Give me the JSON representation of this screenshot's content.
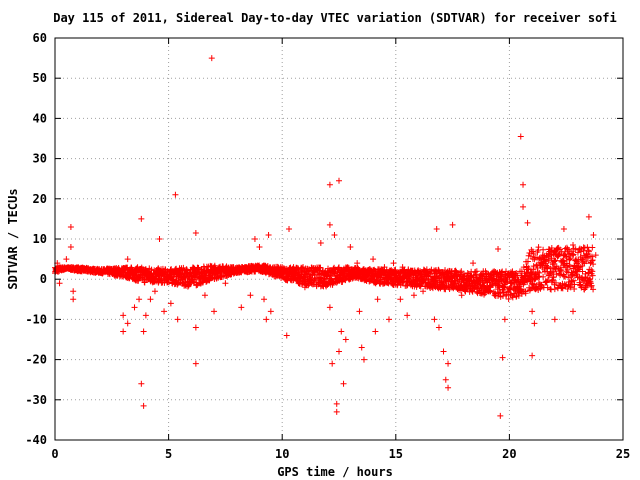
{
  "colors": {
    "series": "#ff0000",
    "frame": "#000000",
    "grid": "#a0a0a0"
  },
  "chart_data": {
    "type": "scatter",
    "title": "Day 115 of 2011, Sidereal Day-to-day VTEC variation (SDTVAR) for receiver sofi",
    "xlabel": "GPS time / hours",
    "ylabel": "SDTVAR / TECUs",
    "xlim": [
      0,
      25
    ],
    "ylim": [
      -40,
      60
    ],
    "xticks": [
      0,
      5,
      10,
      15,
      20,
      25
    ],
    "yticks": [
      -40,
      -30,
      -20,
      -10,
      0,
      10,
      20,
      30,
      40,
      50,
      60
    ],
    "xtick_labels": [
      "0",
      "5",
      "10",
      "15",
      "20",
      "25"
    ],
    "ytick_labels": [
      "-40",
      "-30",
      "-20",
      "-10",
      "0",
      "10",
      "20",
      "30",
      "40",
      "50",
      "60"
    ],
    "grid": true,
    "marker": "plus",
    "series": [
      {
        "band": [
          [
            0.0,
            1.5,
            3
          ],
          [
            0.5,
            2.5,
            3
          ],
          [
            1.0,
            2,
            3
          ],
          [
            2.0,
            1.5,
            2.5
          ],
          [
            3.0,
            0.5,
            3
          ],
          [
            4.0,
            -1,
            3
          ],
          [
            5.0,
            -1,
            2.5
          ],
          [
            6.0,
            -2,
            3
          ],
          [
            7.0,
            0,
            3.5
          ],
          [
            8.0,
            1.5,
            3
          ],
          [
            9.0,
            2,
            3.5
          ],
          [
            10.0,
            0,
            3
          ],
          [
            11.0,
            -1.5,
            3
          ],
          [
            12.0,
            -2,
            3
          ],
          [
            13.0,
            0,
            3
          ],
          [
            14.0,
            -1,
            2.5
          ],
          [
            15.0,
            -1.5,
            2.5
          ],
          [
            16.0,
            -2,
            2.5
          ],
          [
            17.0,
            -2.5,
            2.5
          ],
          [
            18.0,
            -3,
            2
          ],
          [
            19.0,
            -4,
            2
          ],
          [
            20.0,
            -5,
            2
          ],
          [
            20.5,
            -4,
            2
          ],
          [
            21.0,
            -3,
            8
          ],
          [
            22.0,
            -2.5,
            8
          ],
          [
            23.0,
            -2.5,
            8
          ],
          [
            23.7,
            -3,
            8
          ]
        ],
        "points": [
          [
            0.1,
            4
          ],
          [
            0.2,
            -1
          ],
          [
            0.5,
            5
          ],
          [
            0.7,
            13
          ],
          [
            0.7,
            8
          ],
          [
            0.8,
            -3
          ],
          [
            0.8,
            -5
          ],
          [
            3.0,
            -9
          ],
          [
            3.0,
            -13
          ],
          [
            3.2,
            -11
          ],
          [
            3.2,
            5
          ],
          [
            3.5,
            -7
          ],
          [
            3.7,
            -5
          ],
          [
            3.8,
            15
          ],
          [
            3.8,
            -26
          ],
          [
            3.9,
            -31.5
          ],
          [
            3.9,
            -13
          ],
          [
            4.0,
            -9
          ],
          [
            4.2,
            -5
          ],
          [
            4.4,
            -3
          ],
          [
            4.6,
            10
          ],
          [
            4.8,
            -8
          ],
          [
            5.1,
            -6
          ],
          [
            5.3,
            21
          ],
          [
            5.4,
            -10
          ],
          [
            6.2,
            11.5
          ],
          [
            6.2,
            -12
          ],
          [
            6.2,
            -21
          ],
          [
            6.6,
            -4
          ],
          [
            6.9,
            55
          ],
          [
            7.0,
            -8
          ],
          [
            7.5,
            -1
          ],
          [
            8.2,
            -7
          ],
          [
            8.6,
            -4
          ],
          [
            8.8,
            10
          ],
          [
            9.0,
            8
          ],
          [
            9.2,
            -5
          ],
          [
            9.3,
            -10
          ],
          [
            9.4,
            11
          ],
          [
            9.5,
            -8
          ],
          [
            10.2,
            -14
          ],
          [
            10.3,
            12.5
          ],
          [
            10.5,
            3
          ],
          [
            11.0,
            -2
          ],
          [
            11.7,
            9
          ],
          [
            11.9,
            2
          ],
          [
            12.1,
            13.5
          ],
          [
            12.1,
            23.5
          ],
          [
            12.1,
            -7
          ],
          [
            12.2,
            -21
          ],
          [
            12.3,
            11
          ],
          [
            12.4,
            -31
          ],
          [
            12.4,
            -33
          ],
          [
            12.5,
            24.5
          ],
          [
            12.5,
            -18
          ],
          [
            12.6,
            -13
          ],
          [
            12.7,
            -26
          ],
          [
            12.8,
            -15
          ],
          [
            13.0,
            8
          ],
          [
            13.3,
            4
          ],
          [
            13.4,
            -8
          ],
          [
            13.5,
            -17
          ],
          [
            13.6,
            -20
          ],
          [
            13.8,
            2
          ],
          [
            14.0,
            5
          ],
          [
            14.1,
            -13
          ],
          [
            14.2,
            -5
          ],
          [
            14.5,
            3
          ],
          [
            14.7,
            -10
          ],
          [
            14.9,
            4
          ],
          [
            15.2,
            -5
          ],
          [
            15.3,
            3
          ],
          [
            15.5,
            -9
          ],
          [
            15.8,
            -4
          ],
          [
            16.2,
            -3
          ],
          [
            16.5,
            2
          ],
          [
            16.7,
            -10
          ],
          [
            16.8,
            12.5
          ],
          [
            16.9,
            -12
          ],
          [
            17.1,
            -18
          ],
          [
            17.2,
            -25
          ],
          [
            17.3,
            -27
          ],
          [
            17.3,
            -21
          ],
          [
            17.5,
            13.5
          ],
          [
            17.6,
            2
          ],
          [
            17.9,
            -4
          ],
          [
            18.4,
            4
          ],
          [
            19.0,
            -2
          ],
          [
            19.5,
            7.5
          ],
          [
            19.6,
            -34
          ],
          [
            19.7,
            -19.5
          ],
          [
            19.8,
            -10
          ],
          [
            20.5,
            35.5
          ],
          [
            20.6,
            23.5
          ],
          [
            20.6,
            18
          ],
          [
            20.8,
            14
          ],
          [
            21.0,
            -8
          ],
          [
            21.0,
            -19
          ],
          [
            21.1,
            -11
          ],
          [
            21.3,
            5
          ],
          [
            22.0,
            -10
          ],
          [
            22.4,
            12.5
          ],
          [
            22.8,
            8.5
          ],
          [
            22.8,
            -8
          ],
          [
            23.5,
            15.5
          ],
          [
            23.7,
            11
          ],
          [
            23.8,
            6
          ]
        ]
      }
    ]
  }
}
